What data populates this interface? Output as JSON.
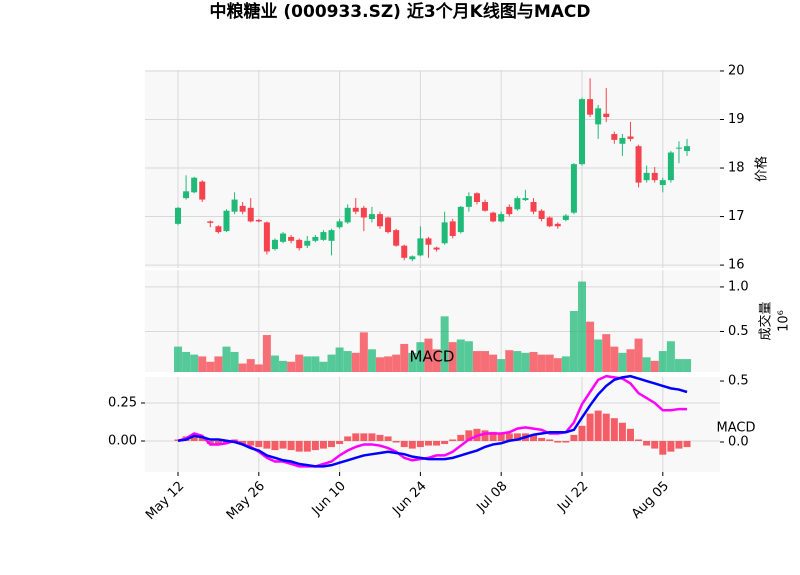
{
  "chart_data": [
    {
      "type": "candlestick",
      "title": "中粮糖业 (000933.SZ) 近3个月K线图与MACD",
      "ylabel": "价格",
      "categories": [
        "May 12",
        null,
        null,
        null,
        null,
        null,
        null,
        null,
        null,
        null,
        "May 26",
        null,
        null,
        null,
        null,
        null,
        null,
        null,
        null,
        null,
        "Jun 10",
        null,
        null,
        null,
        null,
        null,
        null,
        null,
        null,
        null,
        "Jun 24",
        null,
        null,
        null,
        null,
        null,
        null,
        null,
        null,
        null,
        "Jul 08",
        null,
        null,
        null,
        null,
        null,
        null,
        null,
        null,
        null,
        "Jul 22",
        null,
        null,
        null,
        null,
        null,
        null,
        null,
        null,
        null,
        "Aug 05",
        null,
        null,
        null
      ],
      "open": [
        16.85,
        17.38,
        17.5,
        17.72,
        16.9,
        16.8,
        16.7,
        17.1,
        17.22,
        17.18,
        16.93,
        16.88,
        16.33,
        16.48,
        16.58,
        16.52,
        16.4,
        16.5,
        16.52,
        16.5,
        16.78,
        16.88,
        17.18,
        17.18,
        16.95,
        17.05,
        16.98,
        16.72,
        16.4,
        16.12,
        16.2,
        16.55,
        16.36,
        16.45,
        16.9,
        16.68,
        17.2,
        17.48,
        17.3,
        17.08,
        16.9,
        17.2,
        17.15,
        17.34,
        17.3,
        17.12,
        16.98,
        16.85,
        16.93,
        17.08,
        18.08,
        19.42,
        18.9,
        19.12,
        18.7,
        18.5,
        18.65,
        18.45,
        17.75,
        17.9,
        17.65,
        17.75,
        18.4,
        18.35
      ],
      "high": [
        17.2,
        17.85,
        17.82,
        17.75,
        16.92,
        16.82,
        17.15,
        17.5,
        17.3,
        17.38,
        16.95,
        16.9,
        16.55,
        16.68,
        16.62,
        16.55,
        16.6,
        16.62,
        16.72,
        16.75,
        16.95,
        17.25,
        17.38,
        17.22,
        17.2,
        17.1,
        17.0,
        16.75,
        16.42,
        16.2,
        16.8,
        16.58,
        16.38,
        17.1,
        16.95,
        17.22,
        17.5,
        17.5,
        17.35,
        17.1,
        17.1,
        17.25,
        17.42,
        17.55,
        17.38,
        17.15,
        17.0,
        16.88,
        17.05,
        18.1,
        19.45,
        19.85,
        19.3,
        19.65,
        18.75,
        18.7,
        18.95,
        18.48,
        18.05,
        18.02,
        17.8,
        18.35,
        18.55,
        18.6
      ],
      "low": [
        16.82,
        17.35,
        17.48,
        17.3,
        16.78,
        16.65,
        16.68,
        17.05,
        17.05,
        16.88,
        16.88,
        16.22,
        16.3,
        16.45,
        16.45,
        16.3,
        16.35,
        16.47,
        16.5,
        16.2,
        16.75,
        16.85,
        17.05,
        16.7,
        16.88,
        16.75,
        16.65,
        16.38,
        16.1,
        16.08,
        16.18,
        16.15,
        16.28,
        16.42,
        16.55,
        16.65,
        17.1,
        17.25,
        17.1,
        16.88,
        16.88,
        17.0,
        17.12,
        17.32,
        17.05,
        16.9,
        16.78,
        16.75,
        16.9,
        17.05,
        18.05,
        19.05,
        18.6,
        18.95,
        18.5,
        18.25,
        18.55,
        17.6,
        17.7,
        17.7,
        17.5,
        17.7,
        18.1,
        18.25
      ],
      "close": [
        17.18,
        17.52,
        17.8,
        17.35,
        16.87,
        16.68,
        17.12,
        17.35,
        17.1,
        16.9,
        16.9,
        16.28,
        16.52,
        16.65,
        16.5,
        16.35,
        16.5,
        16.58,
        16.68,
        16.72,
        16.9,
        17.18,
        17.1,
        16.98,
        17.05,
        16.8,
        16.68,
        16.4,
        16.15,
        16.18,
        16.55,
        16.42,
        16.32,
        16.88,
        16.6,
        17.2,
        17.42,
        17.3,
        17.12,
        16.9,
        17.05,
        17.05,
        17.38,
        17.38,
        17.1,
        16.95,
        16.8,
        16.8,
        17.02,
        18.08,
        19.42,
        19.1,
        19.23,
        19.05,
        18.58,
        18.62,
        18.6,
        17.7,
        17.9,
        17.75,
        17.75,
        18.32,
        18.42,
        18.45
      ],
      "up_color": "#1fb978",
      "down_color": "#f5424c",
      "ylim": [
        15.94,
        20.02
      ],
      "yticks": [
        16,
        17,
        18,
        19,
        20
      ],
      "grid": true
    },
    {
      "type": "bar",
      "ylabel": "成交量",
      "scale_label": "10⁶",
      "values": [
        0.33,
        0.27,
        0.24,
        0.22,
        0.16,
        0.22,
        0.33,
        0.27,
        0.14,
        0.19,
        0.13,
        0.46,
        0.23,
        0.17,
        0.16,
        0.24,
        0.22,
        0.22,
        0.16,
        0.24,
        0.32,
        0.28,
        0.26,
        0.49,
        0.3,
        0.21,
        0.22,
        0.24,
        0.36,
        0.26,
        0.38,
        0.42,
        0.3,
        0.67,
        0.38,
        0.41,
        0.39,
        0.28,
        0.28,
        0.24,
        0.19,
        0.29,
        0.28,
        0.26,
        0.27,
        0.24,
        0.24,
        0.2,
        0.22,
        0.73,
        1.06,
        0.61,
        0.41,
        0.47,
        0.33,
        0.26,
        0.3,
        0.42,
        0.21,
        0.17,
        0.28,
        0.39,
        0.19,
        0.19
      ],
      "ylim": [
        0.045,
        1.19
      ],
      "yticks": [
        0.5,
        {
          "value": 1,
          "label": "1.0"
        }
      ],
      "grid": true
    },
    {
      "type": "macd",
      "title": "MACD",
      "y2label": "MACD",
      "color": "#f5424c",
      "values": [
        0.01,
        0.03,
        0.03,
        0.02,
        -0.02,
        -0.02,
        -0.01,
        0.01,
        -0.02,
        -0.03,
        -0.04,
        -0.05,
        -0.06,
        -0.05,
        -0.06,
        -0.07,
        -0.07,
        -0.06,
        -0.05,
        -0.04,
        -0.02,
        0.03,
        0.05,
        0.05,
        0.05,
        0.04,
        0.03,
        -0.01,
        -0.04,
        -0.05,
        -0.04,
        -0.03,
        -0.03,
        -0.02,
        0.01,
        0.04,
        0.07,
        0.08,
        0.07,
        0.06,
        0.05,
        0.05,
        0.05,
        0.05,
        0.04,
        0.02,
        0.01,
        -0.01,
        -0.01,
        0.04,
        0.1,
        0.18,
        0.2,
        0.18,
        0.15,
        0.12,
        0.08,
        0.01,
        -0.03,
        -0.05,
        -0.09,
        -0.07,
        -0.05,
        -0.04
      ],
      "ylim": [
        -0.204,
        0.421
      ],
      "yticks": [
        {
          "value": 0,
          "label": "0.00"
        },
        0.25
      ],
      "series": [
        {
          "color": "#ff00ff",
          "axis": "y2",
          "values": [
            0.01,
            0.03,
            0.07,
            0.05,
            -0.02,
            -0.02,
            -0.01,
            0.01,
            -0.02,
            -0.04,
            -0.08,
            -0.13,
            -0.16,
            -0.16,
            -0.18,
            -0.2,
            -0.2,
            -0.2,
            -0.18,
            -0.16,
            -0.11,
            -0.07,
            -0.04,
            -0.02,
            -0.02,
            -0.03,
            -0.05,
            -0.08,
            -0.13,
            -0.15,
            -0.14,
            -0.13,
            -0.11,
            -0.11,
            -0.08,
            -0.03,
            0.02,
            0.05,
            0.07,
            0.07,
            0.07,
            0.08,
            0.11,
            0.12,
            0.11,
            0.1,
            0.07,
            0.07,
            0.08,
            0.16,
            0.31,
            0.41,
            0.51,
            0.54,
            0.53,
            0.52,
            0.48,
            0.4,
            0.36,
            0.32,
            0.26,
            0.26,
            0.27,
            0.27
          ]
        },
        {
          "color": "#0000ff",
          "axis": "y2",
          "values": [
            0.01,
            0.02,
            0.05,
            0.04,
            0.02,
            0.02,
            0.01,
            0,
            -0.02,
            -0.05,
            -0.07,
            -0.11,
            -0.13,
            -0.15,
            -0.16,
            -0.18,
            -0.19,
            -0.2,
            -0.2,
            -0.19,
            -0.17,
            -0.15,
            -0.13,
            -0.11,
            -0.1,
            -0.09,
            -0.08,
            -0.09,
            -0.1,
            -0.12,
            -0.13,
            -0.14,
            -0.14,
            -0.14,
            -0.13,
            -0.11,
            -0.09,
            -0.07,
            -0.04,
            -0.02,
            -0.01,
            0.01,
            0.02,
            0.04,
            0.06,
            0.07,
            0.08,
            0.08,
            0.08,
            0.1,
            0.2,
            0.3,
            0.39,
            0.46,
            0.51,
            0.53,
            0.54,
            0.52,
            0.5,
            0.48,
            0.46,
            0.44,
            0.43,
            0.41
          ]
        }
      ],
      "y2lim": [
        -0.246,
        0.533
      ],
      "y2ticks": [
        {
          "value": 0,
          "label": "0.0"
        },
        0.5
      ],
      "grid": true
    }
  ]
}
